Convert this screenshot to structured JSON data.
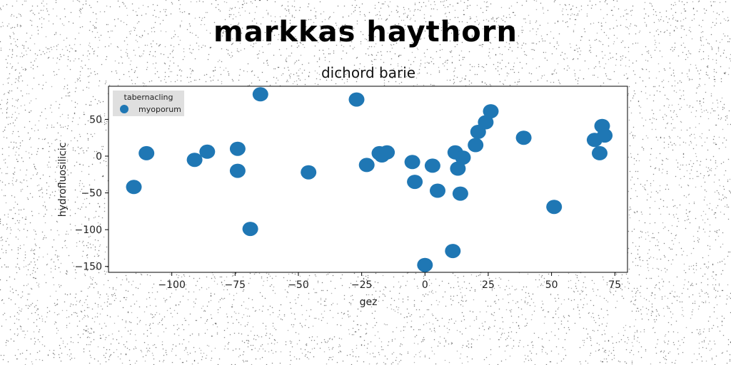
{
  "suptitle": "markkas haythorn",
  "chart_data": {
    "type": "scatter",
    "title": "dichord barie",
    "xlabel": "gez",
    "ylabel": "hydrofluosilicic",
    "xlim": [
      -125,
      80
    ],
    "ylim": [
      -158,
      95
    ],
    "xticks": [
      -100,
      -75,
      -50,
      -25,
      0,
      25,
      50,
      75
    ],
    "xtick_labels": [
      "−100",
      "−75",
      "−50",
      "−25",
      "0",
      "25",
      "50",
      "75"
    ],
    "yticks": [
      50,
      0,
      -50,
      -100,
      -150
    ],
    "ytick_labels": [
      "50",
      "0",
      "−50",
      "−100",
      "−150"
    ],
    "grid": false,
    "legend": {
      "title": "tabernacling",
      "placement": "top-left",
      "entries": [
        "myoporum"
      ]
    },
    "series": [
      {
        "name": "myoporum",
        "color": "#1f77b4",
        "points": [
          {
            "x": -115,
            "y": -42
          },
          {
            "x": -110,
            "y": 4
          },
          {
            "x": -91,
            "y": -5
          },
          {
            "x": -86,
            "y": 6
          },
          {
            "x": -74,
            "y": 10
          },
          {
            "x": -74,
            "y": -20
          },
          {
            "x": -69,
            "y": -99
          },
          {
            "x": -65,
            "y": 84
          },
          {
            "x": -46,
            "y": -22
          },
          {
            "x": -27,
            "y": 77
          },
          {
            "x": -23,
            "y": -12
          },
          {
            "x": -18,
            "y": 4
          },
          {
            "x": -17,
            "y": 1
          },
          {
            "x": -15,
            "y": 5
          },
          {
            "x": -5,
            "y": -8
          },
          {
            "x": -4,
            "y": -35
          },
          {
            "x": 0,
            "y": -148
          },
          {
            "x": 3,
            "y": -13
          },
          {
            "x": 5,
            "y": -47
          },
          {
            "x": 11,
            "y": -129
          },
          {
            "x": 12,
            "y": 5
          },
          {
            "x": 13,
            "y": -17
          },
          {
            "x": 14,
            "y": -51
          },
          {
            "x": 15,
            "y": -2
          },
          {
            "x": 20,
            "y": 15
          },
          {
            "x": 21,
            "y": 33
          },
          {
            "x": 24,
            "y": 46
          },
          {
            "x": 26,
            "y": 61
          },
          {
            "x": 39,
            "y": 25
          },
          {
            "x": 51,
            "y": -69
          },
          {
            "x": 67,
            "y": 22
          },
          {
            "x": 69,
            "y": 4
          },
          {
            "x": 70,
            "y": 41
          },
          {
            "x": 71,
            "y": 28
          }
        ]
      }
    ]
  }
}
